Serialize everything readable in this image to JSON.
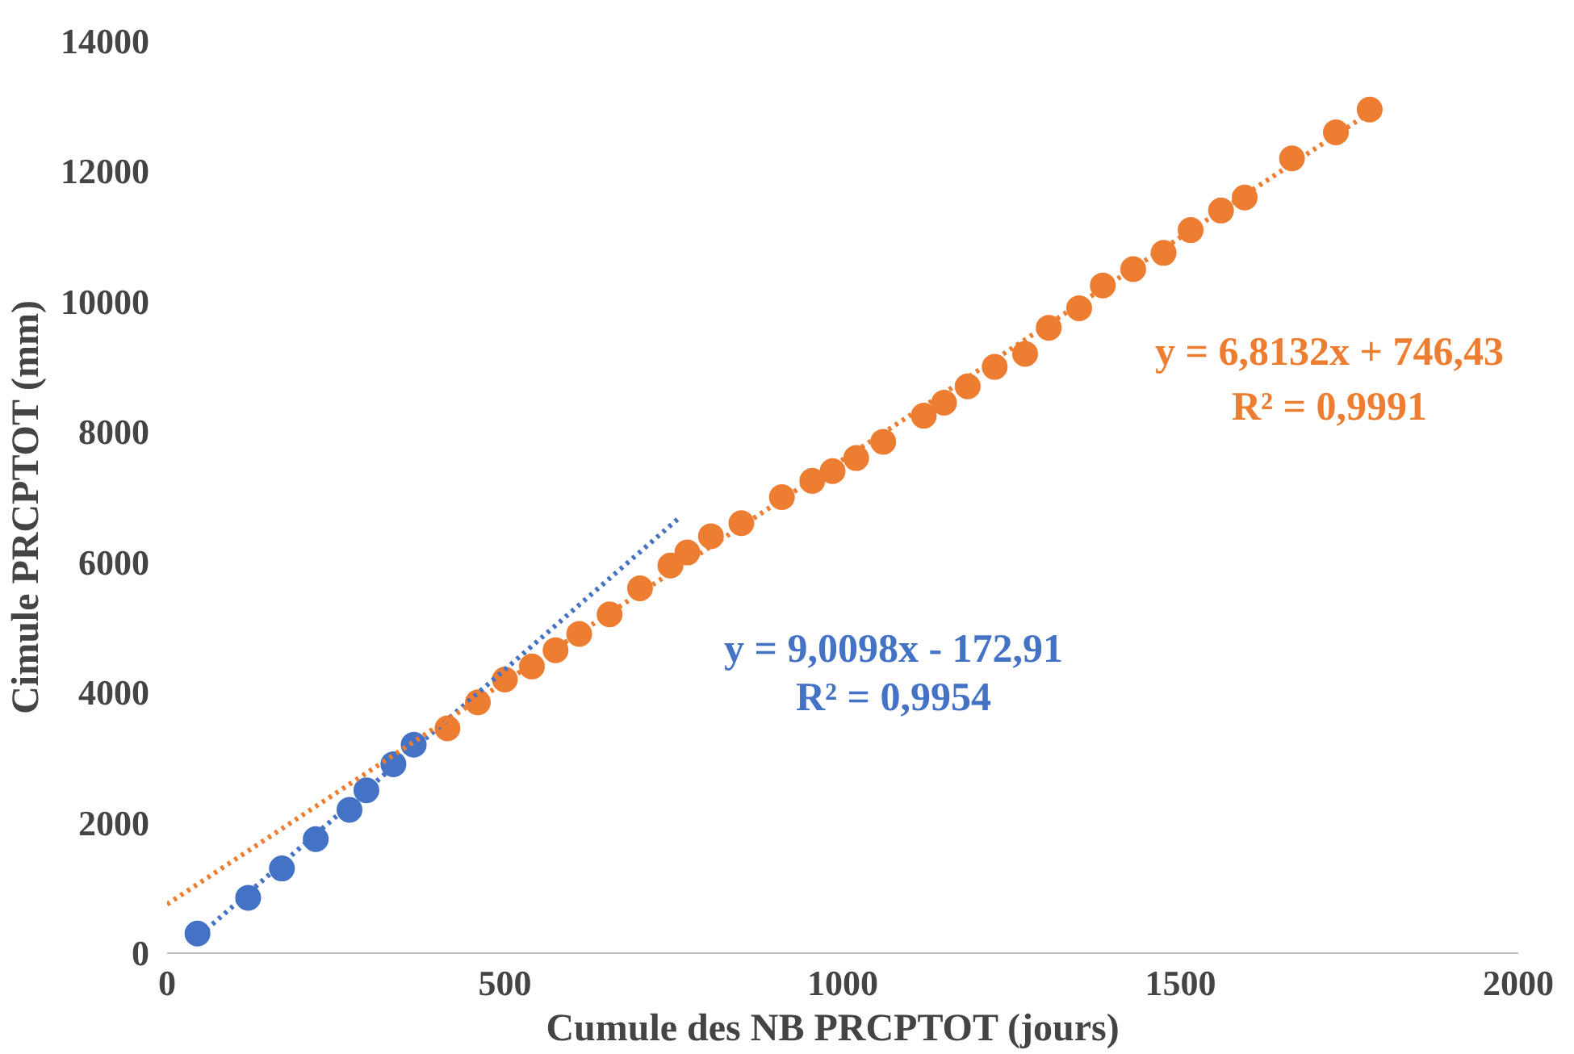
{
  "chart_data": {
    "type": "scatter",
    "xlabel": "Cumule  des NB PRCPTOT  (jours)",
    "ylabel": "Cimule  PRCPTOT  (mm)",
    "xlim": [
      0,
      2000
    ],
    "ylim": [
      0,
      14000
    ],
    "xticks": [
      0,
      500,
      1000,
      1500,
      2000
    ],
    "yticks": [
      0,
      2000,
      4000,
      6000,
      8000,
      10000,
      12000,
      14000
    ],
    "grid": false,
    "marker": "circle",
    "series": [
      {
        "color": "#4472c4",
        "x": [
          45,
          120,
          170,
          220,
          270,
          295,
          335,
          365
        ],
        "values": [
          300,
          850,
          1300,
          1750,
          2200,
          2500,
          2900,
          3200
        ]
      },
      {
        "color": "#ed7d31",
        "x": [
          415,
          460,
          500,
          540,
          575,
          610,
          655,
          700,
          745,
          770,
          805,
          850,
          910,
          955,
          985,
          1020,
          1060,
          1120,
          1150,
          1185,
          1225,
          1270,
          1305,
          1350,
          1385,
          1430,
          1475,
          1515,
          1560,
          1595,
          1665,
          1730,
          1780
        ],
        "values": [
          3450,
          3850,
          4200,
          4400,
          4650,
          4900,
          5200,
          5600,
          5950,
          6150,
          6400,
          6600,
          7000,
          7250,
          7400,
          7600,
          7850,
          8250,
          8450,
          8700,
          9000,
          9200,
          9600,
          9900,
          10250,
          10500,
          10750,
          11100,
          11400,
          11600,
          12200,
          12600,
          12950
        ]
      },
      {
        "type": "line",
        "line_style": "dotted",
        "marker": "none",
        "color": "#4472c4",
        "x": [
          40,
          760
        ],
        "values": [
          200,
          6700
        ]
      },
      {
        "type": "line",
        "line_style": "dotted",
        "marker": "none",
        "color": "#ed7d31",
        "x": [
          0,
          1780
        ],
        "values": [
          750,
          12900
        ]
      }
    ],
    "annotations": [
      "y = 9,0098x - 172,91",
      "R² = 0,9954",
      "y = 6,8132x + 746,43",
      "R² = 0,9991"
    ]
  }
}
